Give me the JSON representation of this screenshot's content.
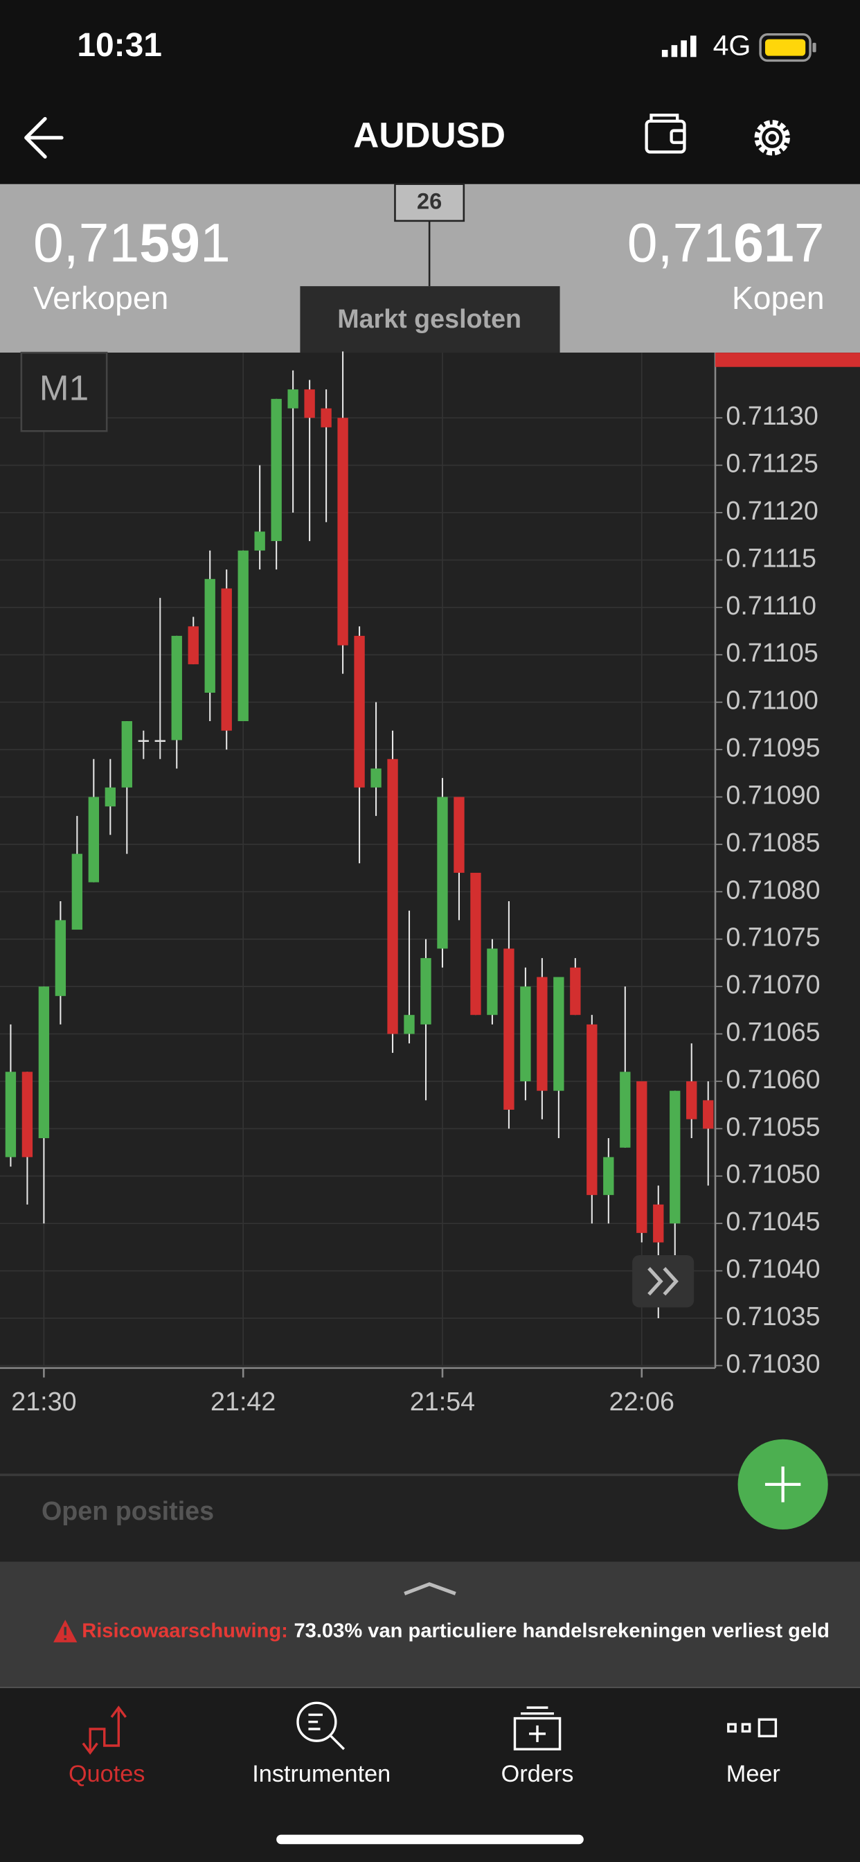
{
  "status_bar": {
    "time": "10:31",
    "network": "4G"
  },
  "header": {
    "title": "AUDUSD"
  },
  "quotes": {
    "sell": {
      "prefix": "0,71",
      "big": "59",
      "suffix": "1",
      "label": "Verkopen"
    },
    "buy": {
      "prefix": "0,71",
      "big": "61",
      "suffix": "7",
      "label": "Kopen"
    },
    "spread_marker": "26",
    "market_status": "Markt gesloten"
  },
  "timeframe": "M1",
  "chart_data": {
    "type": "candlestick",
    "up_color": "#4caf50",
    "down_color": "#d32f2f",
    "grid": true,
    "categories": [
      null,
      null,
      "21:30",
      null,
      null,
      null,
      null,
      null,
      null,
      null,
      null,
      null,
      null,
      null,
      "21:42",
      null,
      null,
      null,
      null,
      null,
      null,
      null,
      null,
      null,
      null,
      null,
      "21:54",
      null,
      null,
      null,
      null,
      null,
      null,
      null,
      null,
      null,
      null,
      null,
      "22:06",
      null,
      null,
      null,
      null
    ],
    "open": [
      0.71052,
      0.71061,
      0.71054,
      0.71069,
      0.71076,
      0.71081,
      0.71089,
      0.71091,
      0.71096,
      0.71096,
      0.71096,
      0.71108,
      0.71101,
      0.71112,
      0.71098,
      0.71116,
      0.71117,
      0.71131,
      0.71133,
      0.71131,
      0.7113,
      0.71107,
      0.71091,
      0.71094,
      0.71065,
      0.71066,
      0.71074,
      0.7109,
      0.71082,
      0.71067,
      0.71074,
      0.7106,
      0.71071,
      0.71059,
      0.71072,
      0.71066,
      0.71048,
      0.71053,
      0.7106,
      0.71047,
      0.71045,
      0.7106,
      0.71058
    ],
    "high": [
      0.71066,
      0.71061,
      0.7107,
      0.71079,
      0.71088,
      0.71094,
      0.71094,
      0.71098,
      0.71097,
      0.71111,
      0.71107,
      0.71109,
      0.71116,
      0.71114,
      0.71116,
      0.71125,
      0.71132,
      0.71135,
      0.71134,
      0.71133,
      0.71137,
      0.71108,
      0.711,
      0.71097,
      0.71078,
      0.71075,
      0.71092,
      0.7109,
      0.71082,
      0.71075,
      0.71079,
      0.71072,
      0.71073,
      0.71071,
      0.71073,
      0.71067,
      0.71054,
      0.7107,
      0.7106,
      0.71049,
      0.71059,
      0.71064,
      0.7106
    ],
    "low": [
      0.71051,
      0.71047,
      0.71045,
      0.71066,
      0.71076,
      0.71081,
      0.71086,
      0.71084,
      0.71094,
      0.71094,
      0.71093,
      0.71104,
      0.71098,
      0.71095,
      0.71098,
      0.71114,
      0.71114,
      0.7112,
      0.71117,
      0.71119,
      0.71103,
      0.71083,
      0.71088,
      0.71063,
      0.71064,
      0.71058,
      0.71072,
      0.71077,
      0.71067,
      0.71066,
      0.71055,
      0.71058,
      0.71056,
      0.71054,
      0.71067,
      0.71045,
      0.71045,
      0.71053,
      0.71043,
      0.71035,
      0.71041,
      0.71054,
      0.71049
    ],
    "close": [
      0.71061,
      0.71052,
      0.7107,
      0.71077,
      0.71084,
      0.7109,
      0.71091,
      0.71098,
      0.71096,
      0.71096,
      0.71107,
      0.71104,
      0.71113,
      0.71097,
      0.71116,
      0.71118,
      0.71132,
      0.71133,
      0.7113,
      0.71129,
      0.71106,
      0.71091,
      0.71093,
      0.71065,
      0.71067,
      0.71073,
      0.7109,
      0.71082,
      0.71067,
      0.71074,
      0.71057,
      0.7107,
      0.71059,
      0.71071,
      0.71067,
      0.71048,
      0.71052,
      0.71061,
      0.71044,
      0.71043,
      0.71059,
      0.71056,
      0.71055
    ],
    "ylim": [
      0.7103,
      0.71137
    ],
    "yticks": [
      {
        "value": 0.7103,
        "label": "0.71030"
      },
      {
        "value": 0.71035,
        "label": "0.71035"
      },
      {
        "value": 0.7104,
        "label": "0.71040"
      },
      {
        "value": 0.71045,
        "label": "0.71045"
      },
      {
        "value": 0.7105,
        "label": "0.71050"
      },
      {
        "value": 0.71055,
        "label": "0.71055"
      },
      {
        "value": 0.7106,
        "label": "0.71060"
      },
      {
        "value": 0.71065,
        "label": "0.71065"
      },
      {
        "value": 0.7107,
        "label": "0.71070"
      },
      {
        "value": 0.71075,
        "label": "0.71075"
      },
      {
        "value": 0.7108,
        "label": "0.71080"
      },
      {
        "value": 0.71085,
        "label": "0.71085"
      },
      {
        "value": 0.7109,
        "label": "0.71090"
      },
      {
        "value": 0.71095,
        "label": "0.71095"
      },
      {
        "value": 0.711,
        "label": "0.71100"
      },
      {
        "value": 0.71105,
        "label": "0.71105"
      },
      {
        "value": 0.7111,
        "label": "0.71110"
      },
      {
        "value": 0.71115,
        "label": "0.71115"
      },
      {
        "value": 0.7112,
        "label": "0.71120"
      },
      {
        "value": 0.71125,
        "label": "0.71125"
      },
      {
        "value": 0.7113,
        "label": "0.71130"
      }
    ]
  },
  "open_positions": "Open posities",
  "warning": {
    "label": "Risicowaarschuwing:",
    "text": "73.03% van particuliere handelsrekeningen verliest geld"
  },
  "nav": {
    "items": [
      "Quotes",
      "Instrumenten",
      "Orders",
      "Meer"
    ],
    "active": 0,
    "active_color": "#d32f2f",
    "color": "#ffffff"
  }
}
